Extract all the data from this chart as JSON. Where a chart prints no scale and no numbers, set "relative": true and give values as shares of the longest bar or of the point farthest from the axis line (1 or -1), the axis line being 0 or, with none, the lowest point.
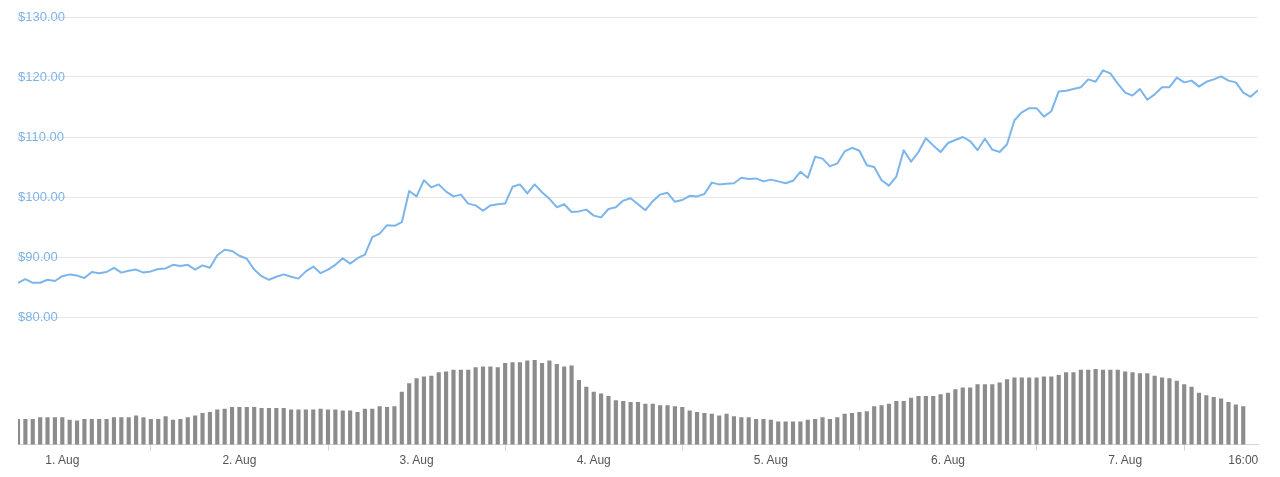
{
  "chart_data": [
    {
      "type": "line",
      "xlim": [
        "--07-31T18:00",
        "--08-07T18:00"
      ],
      "ylim": [
        80,
        130
      ],
      "yticks": [
        {
          "value": 80,
          "label": "$80.00"
        },
        {
          "value": 90,
          "label": "$90.00"
        },
        {
          "value": 100,
          "label": "$100.00"
        },
        {
          "value": 110,
          "label": "$110.00"
        },
        {
          "value": 120,
          "label": "$120.00"
        },
        {
          "value": 130,
          "label": "$130.00"
        }
      ],
      "grid": "y",
      "legend": false,
      "marker": "none",
      "tick_labels": "y",
      "series": [
        {
          "color": "#7cb5ec",
          "x": [
            "--07-31T18:00",
            "--07-31T19:00",
            "--07-31T20:00",
            "--07-31T21:00",
            "--07-31T22:00",
            "--07-31T23:00",
            "--08-01T00:00",
            "--08-01T01:00",
            "--08-01T02:00",
            "--08-01T03:00",
            "--08-01T04:00",
            "--08-01T05:00",
            "--08-01T06:00",
            "--08-01T07:00",
            "--08-01T08:00",
            "--08-01T09:00",
            "--08-01T10:00",
            "--08-01T11:00",
            "--08-01T12:00",
            "--08-01T13:00",
            "--08-01T14:00",
            "--08-01T15:00",
            "--08-01T16:00",
            "--08-01T17:00",
            "--08-01T18:00",
            "--08-01T19:00",
            "--08-01T20:00",
            "--08-01T21:00",
            "--08-01T22:00",
            "--08-01T23:00",
            "--08-02T00:00",
            "--08-02T01:00",
            "--08-02T02:00",
            "--08-02T03:00",
            "--08-02T04:00",
            "--08-02T05:00",
            "--08-02T06:00",
            "--08-02T07:00",
            "--08-02T08:00",
            "--08-02T09:00",
            "--08-02T10:00",
            "--08-02T11:00",
            "--08-02T12:00",
            "--08-02T13:00",
            "--08-02T14:00",
            "--08-02T15:00",
            "--08-02T16:00",
            "--08-02T17:00",
            "--08-02T18:00",
            "--08-02T19:00",
            "--08-02T20:00",
            "--08-02T21:00",
            "--08-02T22:00",
            "--08-02T23:00",
            "--08-03T00:00",
            "--08-03T01:00",
            "--08-03T02:00",
            "--08-03T03:00",
            "--08-03T04:00",
            "--08-03T05:00",
            "--08-03T06:00",
            "--08-03T07:00",
            "--08-03T08:00",
            "--08-03T09:00",
            "--08-03T10:00",
            "--08-03T11:00",
            "--08-03T12:00",
            "--08-03T13:00",
            "--08-03T14:00",
            "--08-03T15:00",
            "--08-03T16:00",
            "--08-03T17:00",
            "--08-03T18:00",
            "--08-03T19:00",
            "--08-03T20:00",
            "--08-03T21:00",
            "--08-03T22:00",
            "--08-03T23:00",
            "--08-04T00:00",
            "--08-04T01:00",
            "--08-04T02:00",
            "--08-04T03:00",
            "--08-04T04:00",
            "--08-04T05:00",
            "--08-04T06:00",
            "--08-04T07:00",
            "--08-04T08:00",
            "--08-04T09:00",
            "--08-04T10:00",
            "--08-04T11:00",
            "--08-04T12:00",
            "--08-04T13:00",
            "--08-04T14:00",
            "--08-04T15:00",
            "--08-04T16:00",
            "--08-04T17:00",
            "--08-04T18:00",
            "--08-04T19:00",
            "--08-04T20:00",
            "--08-04T21:00",
            "--08-04T22:00",
            "--08-04T23:00",
            "--08-05T00:00",
            "--08-05T01:00",
            "--08-05T02:00",
            "--08-05T03:00",
            "--08-05T04:00",
            "--08-05T05:00",
            "--08-05T06:00",
            "--08-05T07:00",
            "--08-05T08:00",
            "--08-05T09:00",
            "--08-05T10:00",
            "--08-05T11:00",
            "--08-05T12:00",
            "--08-05T13:00",
            "--08-05T14:00",
            "--08-05T15:00",
            "--08-05T16:00",
            "--08-05T17:00",
            "--08-05T18:00",
            "--08-05T19:00",
            "--08-05T20:00",
            "--08-05T21:00",
            "--08-05T22:00",
            "--08-05T23:00",
            "--08-06T00:00",
            "--08-06T01:00",
            "--08-06T02:00",
            "--08-06T03:00",
            "--08-06T04:00",
            "--08-06T05:00",
            "--08-06T06:00",
            "--08-06T07:00",
            "--08-06T08:00",
            "--08-06T09:00",
            "--08-06T10:00",
            "--08-06T11:00",
            "--08-06T12:00",
            "--08-06T13:00",
            "--08-06T14:00",
            "--08-06T15:00",
            "--08-06T16:00",
            "--08-06T17:00",
            "--08-06T18:00",
            "--08-06T19:00",
            "--08-06T20:00",
            "--08-06T21:00",
            "--08-06T22:00",
            "--08-06T23:00",
            "--08-07T00:00",
            "--08-07T01:00",
            "--08-07T02:00",
            "--08-07T03:00",
            "--08-07T04:00",
            "--08-07T05:00",
            "--08-07T06:00",
            "--08-07T07:00",
            "--08-07T08:00",
            "--08-07T09:00",
            "--08-07T10:00",
            "--08-07T11:00",
            "--08-07T12:00",
            "--08-07T13:00",
            "--08-07T14:00",
            "--08-07T15:00",
            "--08-07T16:00",
            "--08-07T17:00",
            "--08-07T18:00"
          ],
          "values": [
            85.7,
            86.3,
            85.7,
            85.7,
            86.2,
            86.0,
            86.8,
            87.1,
            86.9,
            86.5,
            87.5,
            87.3,
            87.5,
            88.2,
            87.4,
            87.7,
            87.9,
            87.4,
            87.6,
            88.0,
            88.1,
            88.7,
            88.5,
            88.7,
            87.9,
            88.6,
            88.2,
            90.3,
            91.2,
            91.0,
            90.2,
            89.7,
            87.9,
            86.8,
            86.2,
            86.7,
            87.1,
            86.7,
            86.4,
            87.6,
            88.4,
            87.3,
            87.9,
            88.7,
            89.8,
            88.9,
            89.8,
            90.4,
            93.3,
            93.9,
            95.3,
            95.2,
            95.8,
            101.0,
            100.1,
            102.8,
            101.6,
            102.1,
            100.9,
            100.1,
            100.4,
            98.9,
            98.6,
            97.7,
            98.6,
            98.8,
            98.9,
            101.7,
            102.1,
            100.6,
            102.1,
            100.8,
            99.7,
            98.3,
            98.8,
            97.5,
            97.6,
            97.9,
            96.9,
            96.6,
            98.0,
            98.3,
            99.4,
            99.8,
            98.8,
            97.8,
            99.3,
            100.4,
            100.7,
            99.2,
            99.5,
            100.2,
            100.1,
            100.5,
            102.4,
            102.1,
            102.2,
            102.3,
            103.2,
            103.0,
            103.1,
            102.6,
            102.9,
            102.6,
            102.3,
            102.7,
            104.2,
            103.2,
            106.7,
            106.4,
            105.1,
            105.6,
            107.6,
            108.2,
            107.7,
            105.3,
            105.0,
            102.8,
            101.9,
            103.4,
            107.8,
            105.9,
            107.5,
            109.8,
            108.6,
            107.5,
            109.0,
            109.5,
            110.0,
            109.3,
            107.8,
            109.7,
            107.9,
            107.5,
            108.8,
            112.8,
            114.1,
            114.8,
            114.8,
            113.4,
            114.3,
            117.6,
            117.7,
            118.0,
            118.3,
            119.6,
            119.2,
            121.1,
            120.6,
            118.9,
            117.4,
            116.9,
            118.0,
            116.2,
            117.1,
            118.3,
            118.3,
            119.9,
            119.1,
            119.4,
            118.4,
            119.2,
            119.6,
            120.1,
            119.4,
            119.1,
            117.4,
            116.7,
            117.8
          ]
        }
      ]
    },
    {
      "type": "bar",
      "relative": true,
      "xlim": [
        "--07-31T18:00",
        "--08-07T18:00"
      ],
      "xticks": [
        {
          "value": "--08-01",
          "label": "1. Aug"
        },
        {
          "value": "--08-02",
          "label": "2. Aug"
        },
        {
          "value": "--08-03",
          "label": "3. Aug"
        },
        {
          "value": "--08-04",
          "label": "4. Aug"
        },
        {
          "value": "--08-05",
          "label": "5. Aug"
        },
        {
          "value": "--08-06",
          "label": "6. Aug"
        },
        {
          "value": "--08-07",
          "label": "7. Aug"
        },
        {
          "value": "--08-07T16:00",
          "label": "16:00"
        }
      ],
      "grid": false,
      "legend": false,
      "tick_labels": "x",
      "series": [
        {
          "color": "#8c8c8c",
          "x": [
            "--07-31T18:00",
            "--07-31T19:00",
            "--07-31T20:00",
            "--07-31T21:00",
            "--07-31T22:00",
            "--07-31T23:00",
            "--08-01T00:00",
            "--08-01T01:00",
            "--08-01T02:00",
            "--08-01T03:00",
            "--08-01T04:00",
            "--08-01T05:00",
            "--08-01T06:00",
            "--08-01T07:00",
            "--08-01T08:00",
            "--08-01T09:00",
            "--08-01T10:00",
            "--08-01T11:00",
            "--08-01T12:00",
            "--08-01T13:00",
            "--08-01T14:00",
            "--08-01T15:00",
            "--08-01T16:00",
            "--08-01T17:00",
            "--08-01T18:00",
            "--08-01T19:00",
            "--08-01T20:00",
            "--08-01T21:00",
            "--08-01T22:00",
            "--08-01T23:00",
            "--08-02T00:00",
            "--08-02T01:00",
            "--08-02T02:00",
            "--08-02T03:00",
            "--08-02T04:00",
            "--08-02T05:00",
            "--08-02T06:00",
            "--08-02T07:00",
            "--08-02T08:00",
            "--08-02T09:00",
            "--08-02T10:00",
            "--08-02T11:00",
            "--08-02T12:00",
            "--08-02T13:00",
            "--08-02T14:00",
            "--08-02T15:00",
            "--08-02T16:00",
            "--08-02T17:00",
            "--08-02T18:00",
            "--08-02T19:00",
            "--08-02T20:00",
            "--08-02T21:00",
            "--08-02T22:00",
            "--08-02T23:00",
            "--08-03T00:00",
            "--08-03T01:00",
            "--08-03T02:00",
            "--08-03T03:00",
            "--08-03T04:00",
            "--08-03T05:00",
            "--08-03T06:00",
            "--08-03T07:00",
            "--08-03T08:00",
            "--08-03T09:00",
            "--08-03T10:00",
            "--08-03T11:00",
            "--08-03T12:00",
            "--08-03T13:00",
            "--08-03T14:00",
            "--08-03T15:00",
            "--08-03T16:00",
            "--08-03T17:00",
            "--08-03T18:00",
            "--08-03T19:00",
            "--08-03T20:00",
            "--08-03T21:00",
            "--08-03T22:00",
            "--08-03T23:00",
            "--08-04T00:00",
            "--08-04T01:00",
            "--08-04T02:00",
            "--08-04T03:00",
            "--08-04T04:00",
            "--08-04T05:00",
            "--08-04T06:00",
            "--08-04T07:00",
            "--08-04T08:00",
            "--08-04T09:00",
            "--08-04T10:00",
            "--08-04T11:00",
            "--08-04T12:00",
            "--08-04T13:00",
            "--08-04T14:00",
            "--08-04T15:00",
            "--08-04T16:00",
            "--08-04T17:00",
            "--08-04T18:00",
            "--08-04T19:00",
            "--08-04T20:00",
            "--08-04T21:00",
            "--08-04T22:00",
            "--08-04T23:00",
            "--08-05T00:00",
            "--08-05T01:00",
            "--08-05T02:00",
            "--08-05T03:00",
            "--08-05T04:00",
            "--08-05T05:00",
            "--08-05T06:00",
            "--08-05T07:00",
            "--08-05T08:00",
            "--08-05T09:00",
            "--08-05T10:00",
            "--08-05T11:00",
            "--08-05T12:00",
            "--08-05T13:00",
            "--08-05T14:00",
            "--08-05T15:00",
            "--08-05T16:00",
            "--08-05T17:00",
            "--08-05T18:00",
            "--08-05T19:00",
            "--08-05T20:00",
            "--08-05T21:00",
            "--08-05T22:00",
            "--08-05T23:00",
            "--08-06T00:00",
            "--08-06T01:00",
            "--08-06T02:00",
            "--08-06T03:00",
            "--08-06T04:00",
            "--08-06T05:00",
            "--08-06T06:00",
            "--08-06T07:00",
            "--08-06T08:00",
            "--08-06T09:00",
            "--08-06T10:00",
            "--08-06T11:00",
            "--08-06T12:00",
            "--08-06T13:00",
            "--08-06T14:00",
            "--08-06T15:00",
            "--08-06T16:00",
            "--08-06T17:00",
            "--08-06T18:00",
            "--08-06T19:00",
            "--08-06T20:00",
            "--08-06T21:00",
            "--08-06T22:00",
            "--08-06T23:00",
            "--08-07T00:00",
            "--08-07T01:00",
            "--08-07T02:00",
            "--08-07T03:00",
            "--08-07T04:00",
            "--08-07T05:00",
            "--08-07T06:00",
            "--08-07T07:00",
            "--08-07T08:00",
            "--08-07T09:00",
            "--08-07T10:00",
            "--08-07T11:00",
            "--08-07T12:00",
            "--08-07T13:00",
            "--08-07T14:00",
            "--08-07T15:00",
            "--08-07T16:00"
          ],
          "values": [
            0.3,
            0.3,
            0.3,
            0.32,
            0.32,
            0.32,
            0.32,
            0.29,
            0.28,
            0.3,
            0.3,
            0.3,
            0.3,
            0.32,
            0.32,
            0.32,
            0.34,
            0.32,
            0.3,
            0.3,
            0.33,
            0.29,
            0.3,
            0.32,
            0.34,
            0.37,
            0.38,
            0.41,
            0.42,
            0.44,
            0.44,
            0.44,
            0.44,
            0.43,
            0.43,
            0.43,
            0.43,
            0.41,
            0.41,
            0.41,
            0.41,
            0.42,
            0.41,
            0.41,
            0.4,
            0.4,
            0.38,
            0.42,
            0.42,
            0.45,
            0.44,
            0.45,
            0.62,
            0.72,
            0.78,
            0.8,
            0.81,
            0.85,
            0.86,
            0.88,
            0.88,
            0.88,
            0.91,
            0.92,
            0.92,
            0.91,
            0.96,
            0.97,
            0.97,
            0.99,
            1,
            0.96,
            0.99,
            0.95,
            0.92,
            0.93,
            0.76,
            0.68,
            0.62,
            0.6,
            0.57,
            0.52,
            0.51,
            0.5,
            0.5,
            0.48,
            0.48,
            0.46,
            0.46,
            0.45,
            0.44,
            0.4,
            0.38,
            0.37,
            0.36,
            0.34,
            0.36,
            0.33,
            0.32,
            0.32,
            0.3,
            0.3,
            0.29,
            0.27,
            0.27,
            0.27,
            0.27,
            0.29,
            0.3,
            0.32,
            0.3,
            0.32,
            0.36,
            0.37,
            0.38,
            0.39,
            0.45,
            0.46,
            0.48,
            0.51,
            0.51,
            0.55,
            0.57,
            0.57,
            0.57,
            0.59,
            0.61,
            0.65,
            0.67,
            0.67,
            0.71,
            0.71,
            0.71,
            0.73,
            0.77,
            0.79,
            0.79,
            0.79,
            0.79,
            0.8,
            0.8,
            0.82,
            0.85,
            0.85,
            0.88,
            0.88,
            0.89,
            0.88,
            0.88,
            0.88,
            0.86,
            0.85,
            0.84,
            0.84,
            0.81,
            0.79,
            0.78,
            0.75,
            0.71,
            0.68,
            0.61,
            0.58,
            0.56,
            0.54,
            0.5,
            0.47,
            0.45
          ]
        }
      ]
    }
  ]
}
